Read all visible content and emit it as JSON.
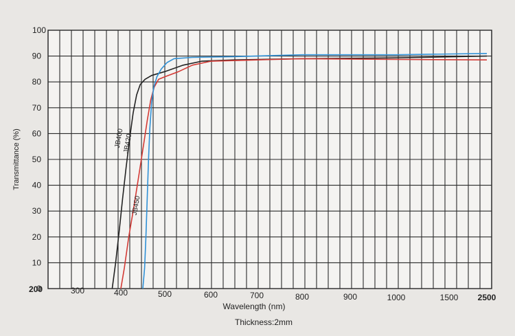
{
  "chart_data": {
    "type": "line",
    "title": "",
    "xlabel": "Wavelength (nm)",
    "ylabel": "Transmittance (%)",
    "caption": "Thickness:2mm",
    "ylim": [
      0,
      100
    ],
    "y_ticks": [
      0,
      10,
      20,
      30,
      40,
      50,
      60,
      70,
      80,
      90,
      100
    ],
    "x_ticks": [
      200,
      300,
      400,
      500,
      600,
      700,
      800,
      900,
      1000,
      1500,
      2500
    ],
    "x_tick_labels": [
      "200",
      "300",
      "400",
      "500",
      "600",
      "700",
      "800",
      "900",
      "1000",
      "1500",
      "2500"
    ],
    "grid": true,
    "legend": "none (labels placed along curves)",
    "series": [
      {
        "name": "JB400",
        "color": "#222222",
        "points": [
          [
            380,
            0
          ],
          [
            388,
            10
          ],
          [
            396,
            22
          ],
          [
            404,
            35
          ],
          [
            412,
            47
          ],
          [
            420,
            58
          ],
          [
            428,
            68
          ],
          [
            436,
            75
          ],
          [
            444,
            79
          ],
          [
            455,
            81
          ],
          [
            470,
            82.5
          ],
          [
            500,
            84
          ],
          [
            540,
            86.5
          ],
          [
            580,
            88
          ],
          [
            650,
            88.5
          ],
          [
            800,
            89
          ],
          [
            1000,
            89.3
          ],
          [
            2500,
            90
          ]
        ]
      },
      {
        "name": "JB420",
        "color": "#d33a35",
        "points": [
          [
            400,
            0
          ],
          [
            408,
            8
          ],
          [
            418,
            20
          ],
          [
            430,
            32
          ],
          [
            442,
            45
          ],
          [
            452,
            56
          ],
          [
            460,
            65
          ],
          [
            468,
            73
          ],
          [
            476,
            78
          ],
          [
            486,
            81
          ],
          [
            500,
            82
          ],
          [
            530,
            84
          ],
          [
            560,
            86.5
          ],
          [
            600,
            88
          ],
          [
            700,
            88.5
          ],
          [
            800,
            89
          ],
          [
            1000,
            88.7
          ],
          [
            2500,
            88.5
          ]
        ]
      },
      {
        "name": "JB450",
        "color": "#2f90d6",
        "points": [
          [
            450,
            0
          ],
          [
            454,
            8
          ],
          [
            457,
            20
          ],
          [
            460,
            35
          ],
          [
            463,
            50
          ],
          [
            466,
            62
          ],
          [
            470,
            72
          ],
          [
            475,
            78
          ],
          [
            482,
            82
          ],
          [
            492,
            85
          ],
          [
            505,
            87.5
          ],
          [
            520,
            89
          ],
          [
            560,
            89.5
          ],
          [
            650,
            89.8
          ],
          [
            800,
            90.5
          ],
          [
            1000,
            90.5
          ],
          [
            2500,
            91
          ]
        ]
      }
    ]
  }
}
